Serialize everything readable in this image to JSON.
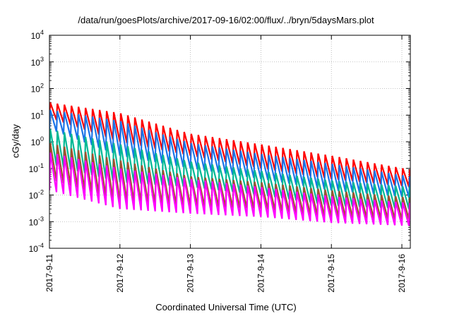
{
  "chart_data": {
    "type": "line",
    "title": "/data/run/goesPlots/archive/2017-09-16/02:00/flux/../bryn/5daysMars.plot",
    "xlabel": "Coordinated Universal Time (UTC)",
    "ylabel": "cGy/day",
    "x_ticks": [
      "2017-9-11",
      "2017-9-12",
      "2017-9-13",
      "2017-9-14",
      "2017-9-15",
      "2017-9-16"
    ],
    "xlim_days": [
      0,
      5.12
    ],
    "yscale": "log",
    "ylim": [
      0.0001,
      10000
    ],
    "y_ticks": [
      {
        "base": "10",
        "exp": "-4"
      },
      {
        "base": "10",
        "exp": "-3"
      },
      {
        "base": "10",
        "exp": "-2"
      },
      {
        "base": "10",
        "exp": "-1"
      },
      {
        "base": "10",
        "exp": "0"
      },
      {
        "base": "10",
        "exp": "1"
      },
      {
        "base": "10",
        "exp": "2"
      },
      {
        "base": "10",
        "exp": "3"
      },
      {
        "base": "10",
        "exp": "4"
      }
    ],
    "grid": true,
    "oscillation_period_days": 0.1,
    "series": [
      {
        "color": "#ff0000",
        "x": [
          0,
          1,
          2,
          3,
          4,
          5.12
        ],
        "peak": [
          30,
          12,
          2,
          0.8,
          0.3,
          0.09
        ],
        "trough": [
          8,
          1,
          0.3,
          0.1,
          0.04,
          0.02
        ]
      },
      {
        "color": "#1a73e8",
        "x": [
          0,
          1,
          2,
          3,
          4,
          5.12
        ],
        "peak": [
          16,
          6,
          0.9,
          0.35,
          0.15,
          0.05
        ],
        "trough": [
          3,
          0.3,
          0.1,
          0.04,
          0.015,
          0.008
        ]
      },
      {
        "color": "#00b894",
        "x": [
          0,
          1,
          2,
          3,
          4,
          5.12
        ],
        "peak": [
          3,
          0.8,
          0.18,
          0.08,
          0.035,
          0.02
        ],
        "trough": [
          0.15,
          0.03,
          0.02,
          0.01,
          0.004,
          0.003
        ]
      },
      {
        "color": "#a0522d",
        "x": [
          0,
          1,
          2,
          3,
          4,
          5.12
        ],
        "peak": [
          0.9,
          0.2,
          0.05,
          0.03,
          0.015,
          0.008
        ],
        "trough": [
          0.04,
          0.006,
          0.004,
          0.003,
          0.0015,
          0.0012
        ]
      },
      {
        "color": "#ff00ff",
        "x": [
          0,
          1,
          2,
          3,
          4,
          5.12
        ],
        "peak": [
          0.4,
          0.1,
          0.04,
          0.02,
          0.009,
          0.005
        ],
        "trough": [
          0.015,
          0.003,
          0.002,
          0.0015,
          0.0009,
          0.0007
        ]
      }
    ]
  }
}
